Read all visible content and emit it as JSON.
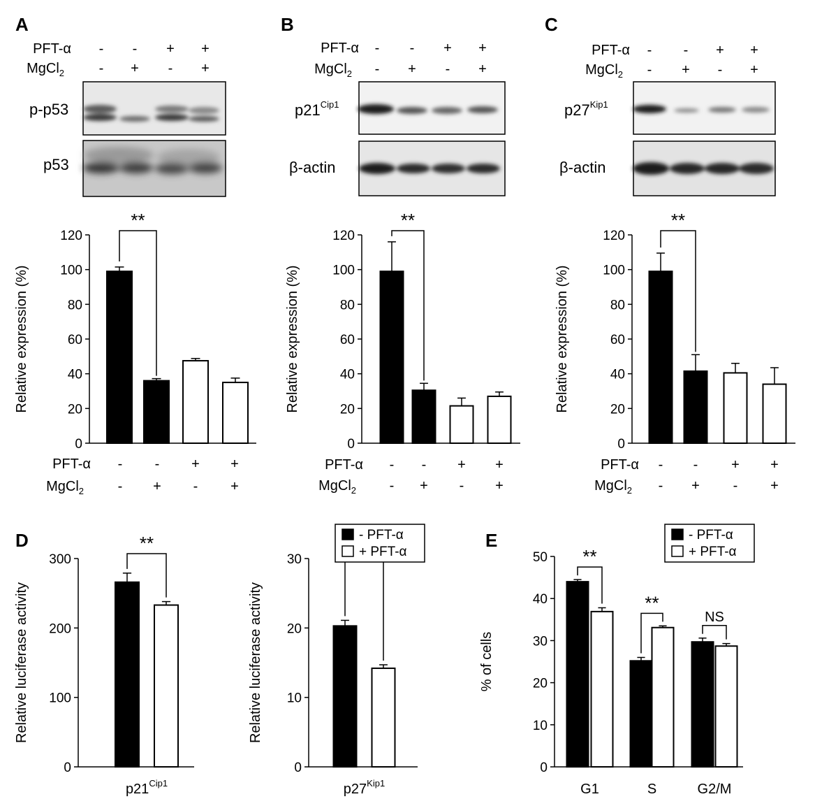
{
  "panels": {
    "A": "A",
    "B": "B",
    "C": "C",
    "D": "D",
    "E": "E"
  },
  "conditions": {
    "row1_label": "PFT-α",
    "row2_label_base": "MgCl",
    "row2_label_sub": "2",
    "pft": [
      "-",
      "-",
      "+",
      "+"
    ],
    "mg": [
      "-",
      "+",
      "-",
      "+"
    ]
  },
  "blots": {
    "A_top": "p-p53",
    "A_bottom": "p53",
    "B_top_base": "p21",
    "B_top_sup": "Cip1",
    "B_bottom": "β-actin",
    "C_top_base": "p27",
    "C_top_sup": "Kip1",
    "C_bottom": "β-actin"
  },
  "colors": {
    "black_bar": "#000000",
    "white_bar": "#ffffff"
  },
  "legend": {
    "minus": "- PFT-α",
    "plus": "+ PFT-α"
  },
  "chart_data": [
    {
      "panel": "A",
      "type": "bar",
      "categories": [
        "PFT-α - / MgCl2 -",
        "PFT-α - / MgCl2 +",
        "PFT-α + / MgCl2 -",
        "PFT-α + / MgCl2 +"
      ],
      "values": [
        99,
        36,
        47.5,
        35
      ],
      "errors": [
        2.5,
        1.2,
        1.3,
        2.5
      ],
      "fills": [
        "black",
        "black",
        "white",
        "white"
      ],
      "ylabel": "Relative expression (%)",
      "ylim": [
        0,
        120
      ],
      "yticks": [
        "0",
        "20",
        "40",
        "60",
        "80",
        "100",
        "120"
      ],
      "significance": [
        {
          "between": [
            0,
            1
          ],
          "label": "**"
        }
      ]
    },
    {
      "panel": "B",
      "type": "bar",
      "categories": [
        "PFT-α - / MgCl2 -",
        "PFT-α - / MgCl2 +",
        "PFT-α + / MgCl2 -",
        "PFT-α + / MgCl2 +"
      ],
      "values": [
        99,
        30.5,
        21.5,
        27
      ],
      "errors": [
        17,
        4,
        4.5,
        2.5
      ],
      "fills": [
        "black",
        "black",
        "white",
        "white"
      ],
      "ylabel": "Relative expression (%)",
      "ylim": [
        0,
        120
      ],
      "yticks": [
        "0",
        "20",
        "40",
        "60",
        "80",
        "100",
        "120"
      ],
      "significance": [
        {
          "between": [
            0,
            1
          ],
          "label": "**"
        }
      ]
    },
    {
      "panel": "C",
      "type": "bar",
      "categories": [
        "PFT-α - / MgCl2 -",
        "PFT-α - / MgCl2 +",
        "PFT-α + / MgCl2 -",
        "PFT-α + / MgCl2 +"
      ],
      "values": [
        99,
        41.5,
        40.5,
        34
      ],
      "errors": [
        10.5,
        9.5,
        5.5,
        9.5
      ],
      "fills": [
        "black",
        "black",
        "white",
        "white"
      ],
      "ylabel": "Relative expression (%)",
      "ylim": [
        0,
        120
      ],
      "yticks": [
        "0",
        "20",
        "40",
        "60",
        "80",
        "100",
        "120"
      ],
      "significance": [
        {
          "between": [
            0,
            1
          ],
          "label": "**"
        }
      ]
    },
    {
      "panel": "D1",
      "type": "bar",
      "categories": [
        "p21Cip1"
      ],
      "series": [
        {
          "name": "- PFT-α",
          "values": [
            266
          ],
          "errors": [
            13
          ]
        },
        {
          "name": "+ PFT-α",
          "values": [
            233
          ],
          "errors": [
            5
          ]
        }
      ],
      "xlabel_base": "p21",
      "xlabel_sup": "Cip1",
      "ylabel": "Relative luciferase activity",
      "ylim": [
        0,
        300
      ],
      "yticks": [
        "0",
        "100",
        "200",
        "300"
      ],
      "significance": [
        {
          "between": [
            0,
            1
          ],
          "label": "**"
        }
      ]
    },
    {
      "panel": "D2",
      "type": "bar",
      "categories": [
        "p27Kip1"
      ],
      "series": [
        {
          "name": "- PFT-α",
          "values": [
            20.3
          ],
          "errors": [
            0.8
          ]
        },
        {
          "name": "+ PFT-α",
          "values": [
            14.2
          ],
          "errors": [
            0.5
          ]
        }
      ],
      "xlabel_base": "p27",
      "xlabel_sup": "Kip1",
      "ylabel": "Relative luciferase activity",
      "ylim": [
        0,
        30
      ],
      "yticks": [
        "0",
        "10",
        "20",
        "30"
      ],
      "significance": [
        {
          "between": [
            0,
            1
          ],
          "label": "**"
        }
      ],
      "legend": "top-right"
    },
    {
      "panel": "E",
      "type": "bar",
      "categories": [
        "G1",
        "S",
        "G2/M"
      ],
      "series": [
        {
          "name": "- PFT-α",
          "values": [
            44,
            25.2,
            29.7
          ],
          "errors": [
            0.5,
            0.8,
            0.9
          ]
        },
        {
          "name": "+ PFT-α",
          "values": [
            36.9,
            33.1,
            28.7
          ],
          "errors": [
            0.9,
            0.4,
            0.6
          ]
        }
      ],
      "ylabel": "% of cells",
      "ylim": [
        0,
        50
      ],
      "yticks": [
        "0",
        "10",
        "20",
        "30",
        "40",
        "50"
      ],
      "significance": [
        {
          "group": 0,
          "label": "**"
        },
        {
          "group": 1,
          "label": "**"
        },
        {
          "group": 2,
          "label": "NS"
        }
      ],
      "legend": "top-right"
    }
  ]
}
